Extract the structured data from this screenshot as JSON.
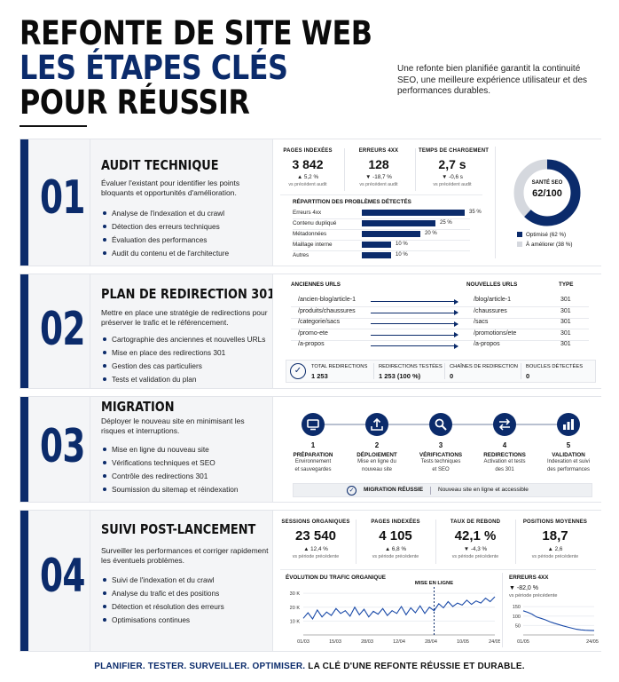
{
  "header": {
    "title_line1": "REFONTE DE SITE WEB",
    "title_line2": "LES ÉTAPES CLÉS",
    "title_line3": "POUR RÉUSSIR",
    "intro": "Une refonte bien planifiée garantit la continuité SEO, une meilleure expérience utilisateur et des performances durables."
  },
  "colors": {
    "navy": "#0b2b6b",
    "blue": "#1a4aa8",
    "light": "#f4f5f7",
    "grey_ring": "#d5d8de"
  },
  "s1": {
    "num": "01",
    "title": "AUDIT TECHNIQUE",
    "desc": "Évaluer l'existant pour identifier les points bloquants et opportunités d'amélioration.",
    "items": [
      "Analyse de l'indexation et du crawl",
      "Détection des erreurs techniques",
      "Évaluation des performances",
      "Audit du contenu et de l'architecture"
    ],
    "kpis": [
      {
        "label": "PAGES INDEXÉES",
        "value": "3 842",
        "delta": "▲ 5,2 %",
        "sub": "vs précédent audit"
      },
      {
        "label": "ERREURS 4XX",
        "value": "128",
        "delta": "▼ -18,7 %",
        "sub": "vs précédent audit"
      },
      {
        "label": "TEMPS DE CHARGEMENT",
        "value": "2,7 s",
        "delta": "▼ -0,6 s",
        "sub": "vs précédent audit"
      }
    ],
    "issues_title": "RÉPARTITION DES PROBLÈMES DÉTECTÉS",
    "issues": [
      {
        "label": "Erreurs 4xx",
        "pct": 35,
        "text": "35 %"
      },
      {
        "label": "Contenu dupliqué",
        "pct": 25,
        "text": "25 %"
      },
      {
        "label": "Métadonnées",
        "pct": 20,
        "text": "20 %"
      },
      {
        "label": "Maillage interne",
        "pct": 10,
        "text": "10 %"
      },
      {
        "label": "Autres",
        "pct": 10,
        "text": "10 %"
      }
    ],
    "seo": {
      "label": "SANTÉ SEO",
      "value": "62/100",
      "fraction": 0.62,
      "legend_opt": "Optimisé (62 %)",
      "legend_imp": "À améliorer (38 %)"
    }
  },
  "s2": {
    "num": "02",
    "title": "PLAN DE REDIRECTION 301",
    "desc": "Mettre en place une stratégie de redirections pour préserver le trafic et le référencement.",
    "items": [
      "Cartographie des anciennes et nouvelles URLs",
      "Mise en place des redirections 301",
      "Gestion des cas particuliers",
      "Tests et validation du plan"
    ],
    "col_old": "ANCIENNES URLS",
    "col_new": "NOUVELLES URLS",
    "col_type": "TYPE",
    "rows": [
      {
        "old": "/ancien-blog/article-1",
        "new": "/blog/article-1",
        "type": "301"
      },
      {
        "old": "/produits/chaussures",
        "new": "/chaussures",
        "type": "301"
      },
      {
        "old": "/categorie/sacs",
        "new": "/sacs",
        "type": "301"
      },
      {
        "old": "/promo-ete",
        "new": "/promotions/ete",
        "type": "301"
      },
      {
        "old": "/a-propos",
        "new": "/a-propos",
        "type": "301"
      }
    ],
    "stats": [
      {
        "label": "TOTAL REDIRECTIONS",
        "value": "1 253"
      },
      {
        "label": "REDIRECTIONS TESTÉES",
        "value": "1 253 (100 %)"
      },
      {
        "label": "CHAÎNES DE REDIRECTION",
        "value": "0"
      },
      {
        "label": "BOUCLES DÉTECTÉES",
        "value": "0"
      }
    ]
  },
  "s3": {
    "num": "03",
    "title": "MIGRATION",
    "desc": "Déployer le nouveau site en minimisant les risques et interruptions.",
    "items": [
      "Mise en ligne du nouveau site",
      "Vérifications techniques et SEO",
      "Contrôle des redirections 301",
      "Soumission du sitemap et réindexation"
    ],
    "steps": [
      {
        "n": "1",
        "title": "PRÉPARATION",
        "d1": "Environnement",
        "d2": "et sauvegardes",
        "icon": "monitor-icon"
      },
      {
        "n": "2",
        "title": "DÉPLOIEMENT",
        "d1": "Mise en ligne du",
        "d2": "nouveau site",
        "icon": "upload-icon"
      },
      {
        "n": "3",
        "title": "VÉRIFICATIONS",
        "d1": "Tests techniques",
        "d2": "et SEO",
        "icon": "search-icon"
      },
      {
        "n": "4",
        "title": "REDIRECTIONS",
        "d1": "Activation et tests",
        "d2": "des 301",
        "icon": "redirect-icon"
      },
      {
        "n": "5",
        "title": "VALIDATION",
        "d1": "Indexation et suivi",
        "d2": "des performances",
        "icon": "bar-chart-icon"
      }
    ],
    "success_label": "MIGRATION RÉUSSIE",
    "success_text": "Nouveau site en ligne et accessible"
  },
  "s4": {
    "num": "04",
    "title": "SUIVI POST-LANCEMENT",
    "desc": "Surveiller les performances et corriger rapidement les éventuels problèmes.",
    "items": [
      "Suivi de l'indexation et du crawl",
      "Analyse du trafic et des positions",
      "Détection et résolution des erreurs",
      "Optimisations continues"
    ],
    "kpis": [
      {
        "label": "SESSIONS ORGANIQUES",
        "value": "23 540",
        "delta": "▲ 12,4 %",
        "sub": "vs période précédente"
      },
      {
        "label": "PAGES INDEXÉES",
        "value": "4 105",
        "delta": "▲ 6,8 %",
        "sub": "vs période précédente"
      },
      {
        "label": "TAUX DE REBOND",
        "value": "42,1 %",
        "delta": "▼ -4,3 %",
        "sub": "vs période précédente"
      },
      {
        "label": "POSITIONS MOYENNES",
        "value": "18,7",
        "delta": "▲ 2,6",
        "sub": "vs période précédente"
      }
    ],
    "traffic_title": "ÉVOLUTION DU TRAFIC ORGANIQUE",
    "launch_label": "MISE EN LIGNE",
    "err_title": "ERREURS 4XX",
    "err_delta": "▼ -82,0 %",
    "err_sub": "vs période précédente"
  },
  "chart_data": [
    {
      "type": "line",
      "title": "ÉVOLUTION DU TRAFIC ORGANIQUE",
      "x": [
        "01/03",
        "03/03",
        "05/03",
        "07/03",
        "09/03",
        "11/03",
        "13/03",
        "15/03",
        "17/03",
        "19/03",
        "21/03",
        "23/03",
        "25/03",
        "28/03",
        "30/03",
        "01/04",
        "03/04",
        "05/04",
        "07/04",
        "09/04",
        "12/04",
        "14/04",
        "16/04",
        "18/04",
        "20/04",
        "22/04",
        "24/04",
        "26/04",
        "28/04",
        "30/04",
        "02/05",
        "04/05",
        "06/05",
        "08/05",
        "10/05",
        "12/05",
        "14/05",
        "16/05",
        "18/05",
        "20/05",
        "22/05",
        "24/05"
      ],
      "xticks": [
        "01/03",
        "15/03",
        "28/03",
        "12/04",
        "28/04",
        "10/05",
        "24/05"
      ],
      "yticks": [
        "10 K",
        "20 K",
        "30 K"
      ],
      "ylim": [
        0,
        32000
      ],
      "values": [
        12000,
        16000,
        11500,
        18000,
        13000,
        16500,
        14000,
        19000,
        15500,
        17500,
        13500,
        20000,
        14500,
        18500,
        13000,
        17000,
        15000,
        19000,
        14000,
        17500,
        15500,
        20500,
        14500,
        19500,
        16000,
        21000,
        15500,
        20000,
        17500,
        22500,
        19500,
        24000,
        20500,
        23000,
        21500,
        25000,
        22000,
        24500,
        23000,
        26500,
        24000,
        27500
      ],
      "annotations": [
        "MISE EN LIGNE"
      ],
      "launch_x": "28/04"
    },
    {
      "type": "line",
      "title": "ERREURS 4XX",
      "xticks": [
        "01/05",
        "24/05"
      ],
      "yticks": [
        "50",
        "100",
        "150"
      ],
      "ylim": [
        0,
        160
      ],
      "values": [
        128,
        120,
        110,
        95,
        88,
        80,
        70,
        62,
        55,
        48,
        42,
        36,
        30,
        27,
        25,
        24,
        23
      ]
    }
  ],
  "footer": {
    "navy_part": "PLANIFIER. TESTER. SURVEILLER. OPTIMISER.",
    "black_part": " LA CLÉ D'UNE REFONTE RÉUSSIE ET DURABLE."
  }
}
